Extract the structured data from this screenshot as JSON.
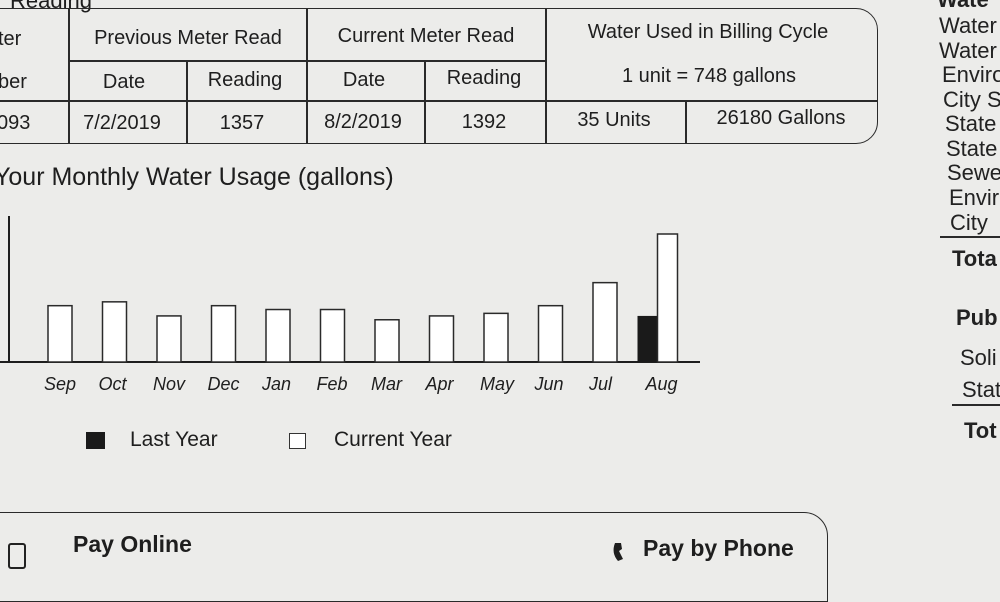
{
  "section_heading": "Reading",
  "meter_table": {
    "meter_number_header_line1": "ter",
    "meter_number_header_line2": "ber",
    "meter_number": "093",
    "previous_read_header": "Previous Meter Read",
    "current_read_header": "Current Meter Read",
    "date_label": "Date",
    "reading_label": "Reading",
    "water_used_header": "Water Used in Billing Cycle",
    "unit_conversion": "1 unit = 748 gallons",
    "previous_date": "7/2/2019",
    "previous_reading": "1357",
    "current_date": "8/2/2019",
    "current_reading": "1392",
    "units_used": "35 Units",
    "gallons_used": "26180 Gallons"
  },
  "chart_data": {
    "type": "bar",
    "title": "Your Monthly Water Usage (gallons)",
    "categories": [
      "Sep",
      "Oct",
      "Nov",
      "Dec",
      "Jan",
      "Feb",
      "Mar",
      "Apr",
      "May",
      "Jun",
      "Jul",
      "Aug"
    ],
    "series": [
      {
        "name": "Last Year",
        "values": [
          null,
          null,
          null,
          null,
          null,
          null,
          null,
          null,
          null,
          null,
          null,
          0.36
        ],
        "color": "#1a1a1a"
      },
      {
        "name": "Current Year",
        "values": [
          0.44,
          0.47,
          0.36,
          0.44,
          0.41,
          0.41,
          0.33,
          0.36,
          0.38,
          0.44,
          0.62,
          1.0
        ],
        "color": "#ffffff"
      }
    ],
    "ylim": [
      0,
      1
    ],
    "legend": "bottom"
  },
  "right_column": {
    "lines_top": [
      "Water",
      "Water",
      "Enviro",
      "City S",
      "State",
      "State",
      "Sewe",
      "Envir",
      "City"
    ],
    "total_1": "Tota",
    "section_2_heading": "Pub",
    "lines_bottom": [
      "Soli",
      "Stat"
    ],
    "total_2": "Tot"
  },
  "payment": {
    "pay_online_label": "Pay Online",
    "pay_by_phone_label": "Pay by Phone"
  }
}
